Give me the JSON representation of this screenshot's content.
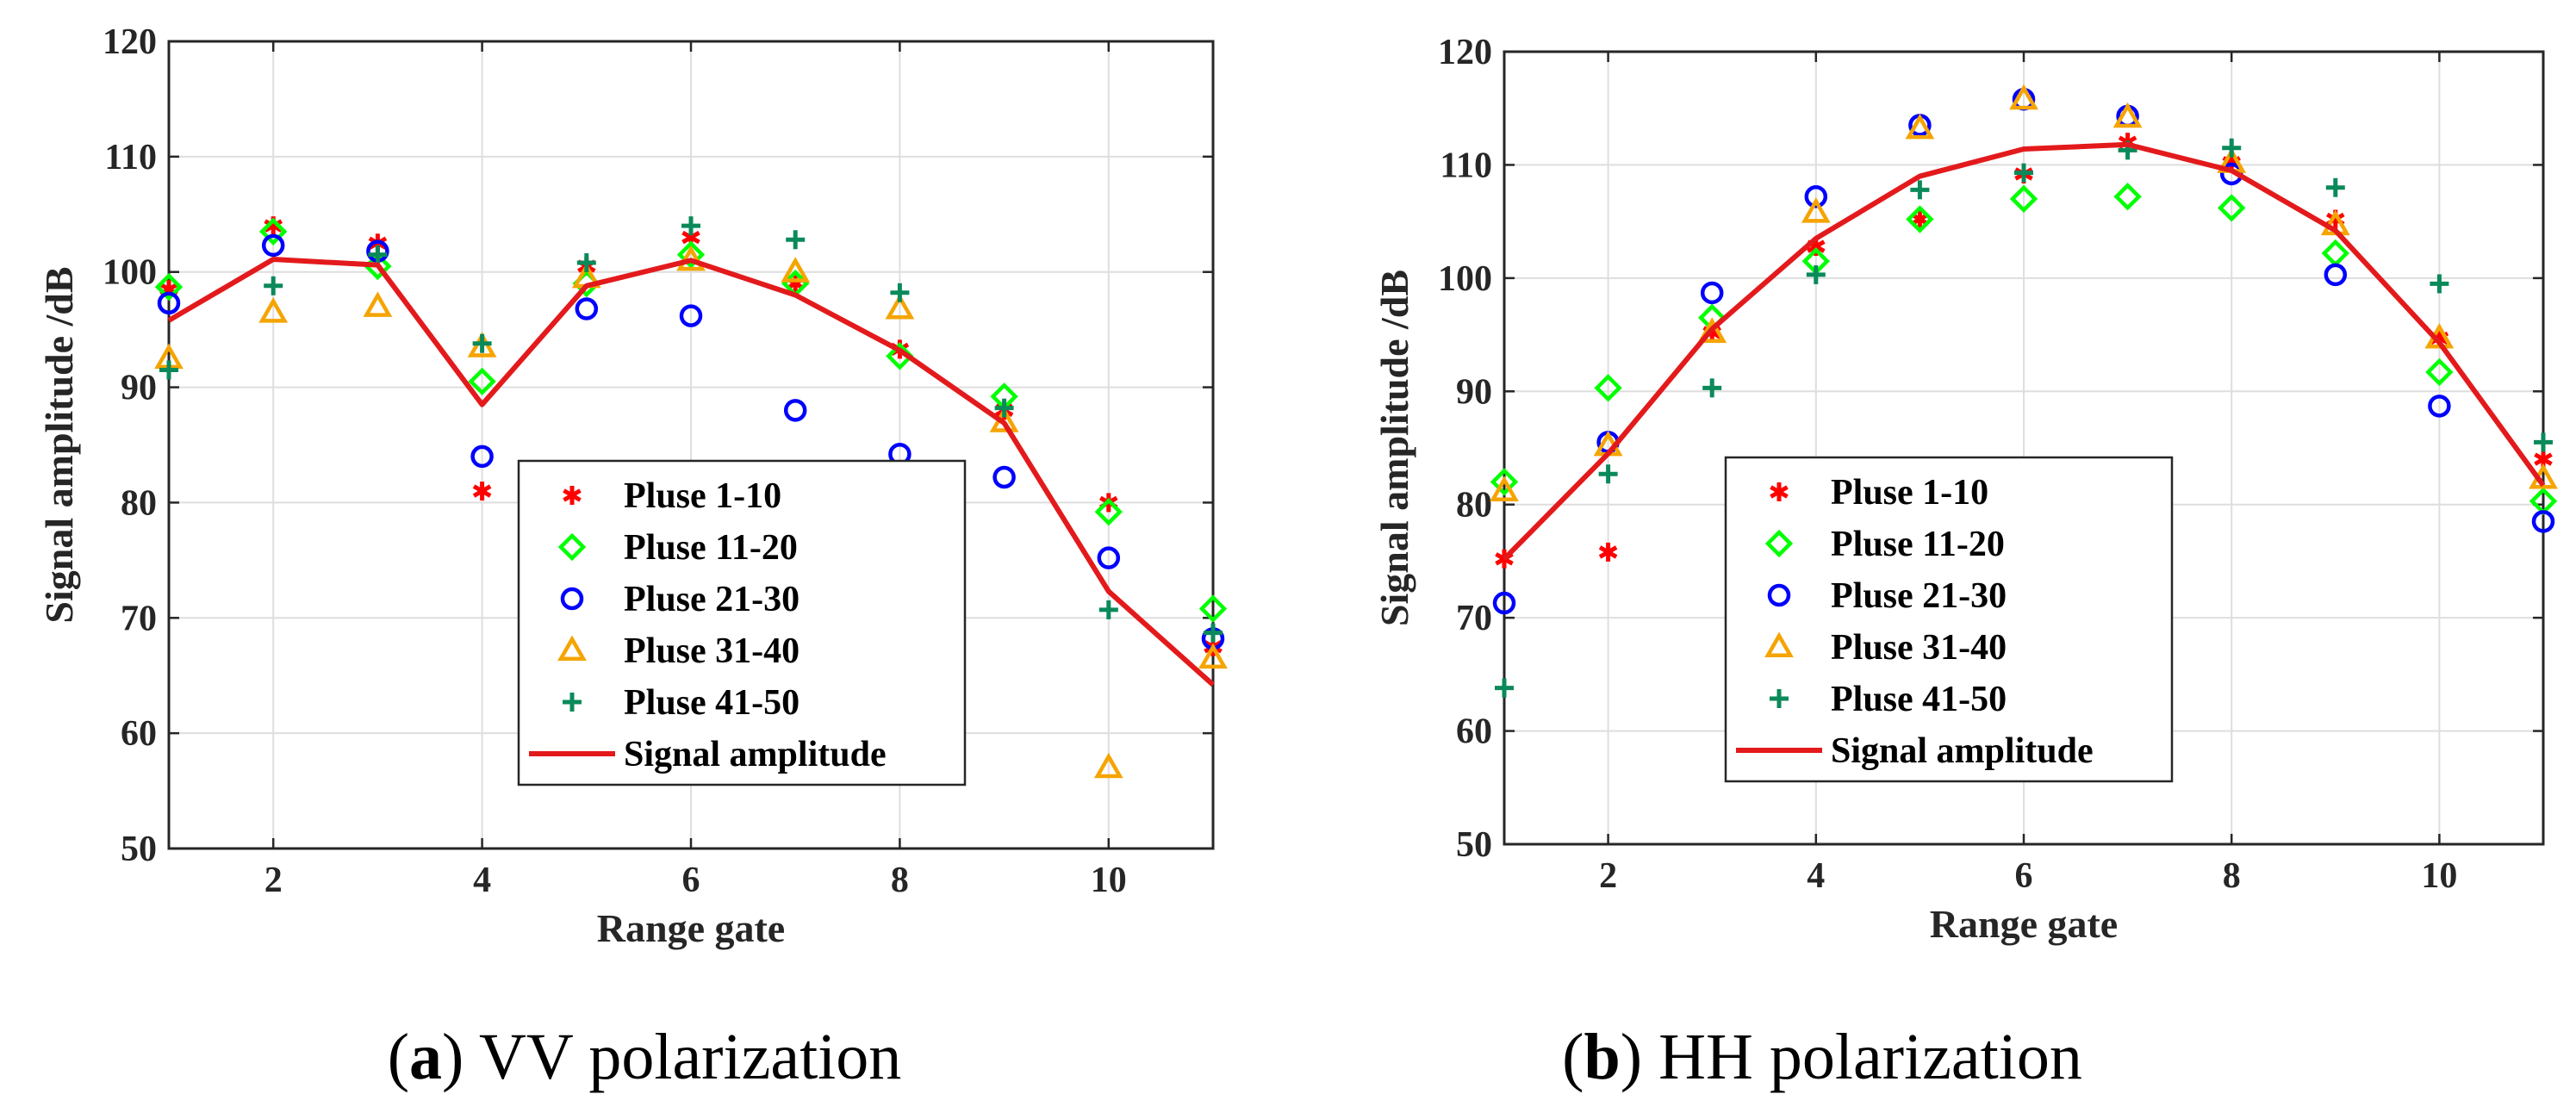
{
  "chart_data": [
    {
      "type": "scatter",
      "caption": {
        "letter": "a",
        "text": "VV polarization"
      },
      "xlabel": "Range gate",
      "ylabel": "Signal amplitude  /dB",
      "xlim": [
        1,
        11
      ],
      "ylim": [
        50,
        120
      ],
      "xticks": [
        2,
        4,
        6,
        8,
        10
      ],
      "yticks": [
        50,
        60,
        70,
        80,
        90,
        100,
        110,
        120
      ],
      "grid": true,
      "legend_position": "lower-right",
      "x": [
        1,
        2,
        3,
        4,
        5,
        6,
        7,
        8,
        9,
        10,
        11
      ],
      "series": [
        {
          "name": "Pluse 1-10",
          "marker": "asterisk",
          "color": "#ff0000",
          "values": [
            98.5,
            104,
            102.5,
            81,
            100.5,
            103,
            99,
            93.3,
            88,
            80,
            67.5
          ]
        },
        {
          "name": "Pluse 11-20",
          "marker": "diamond",
          "color": "#00ff00",
          "values": [
            98.7,
            103.5,
            100.5,
            90.5,
            99,
            101.5,
            99,
            92.7,
            89.2,
            79.2,
            70.8
          ]
        },
        {
          "name": "Pluse 21-30",
          "marker": "circle",
          "color": "#0000ff",
          "values": [
            97.3,
            102.3,
            101.8,
            84,
            96.8,
            96.2,
            88,
            84.2,
            82.2,
            75.2,
            68.2
          ]
        },
        {
          "name": "Pluse 31-40",
          "marker": "triangle",
          "color": "#f5a400",
          "values": [
            92.5,
            96.5,
            97,
            93.5,
            99.5,
            101,
            100,
            96.8,
            87,
            57,
            66.5
          ]
        },
        {
          "name": "Pluse 41-50",
          "marker": "plus",
          "color": "#0a8a5a",
          "values": [
            91.5,
            98.8,
            101.5,
            93.8,
            100.8,
            104,
            102.8,
            98.2,
            88.2,
            70.7,
            68.7
          ]
        },
        {
          "name": "Signal amplitude",
          "marker": "line",
          "color": "#e31a1c",
          "values": [
            95.8,
            101.1,
            100.6,
            88.5,
            98.8,
            101,
            98,
            93.2,
            86.9,
            72.3,
            64.2
          ]
        }
      ]
    },
    {
      "type": "scatter",
      "caption": {
        "letter": "b",
        "text": "HH polarization"
      },
      "xlabel": "Range gate",
      "ylabel": "Signal amplitude  /dB",
      "xlim": [
        1,
        11
      ],
      "ylim": [
        50,
        120
      ],
      "xticks": [
        2,
        4,
        6,
        8,
        10
      ],
      "yticks": [
        50,
        60,
        70,
        80,
        90,
        100,
        110,
        120
      ],
      "grid": true,
      "legend_position": "lower-left",
      "x": [
        1,
        2,
        3,
        4,
        5,
        6,
        7,
        8,
        9,
        10,
        11
      ],
      "series": [
        {
          "name": "Pluse 1-10",
          "marker": "asterisk",
          "color": "#ff0000",
          "values": [
            75.2,
            75.8,
            95.2,
            102.8,
            105.2,
            109.2,
            112,
            110.2,
            105.2,
            94.7,
            84
          ]
        },
        {
          "name": "Pluse 11-20",
          "marker": "diamond",
          "color": "#00ff00",
          "values": [
            82,
            90.3,
            96.5,
            101.5,
            105.2,
            107,
            107.2,
            106.2,
            102.2,
            91.7,
            80.3
          ]
        },
        {
          "name": "Pluse 21-30",
          "marker": "circle",
          "color": "#0000ff",
          "values": [
            71.3,
            85.5,
            98.7,
            107.2,
            113.5,
            115.8,
            114.3,
            109.2,
            100.3,
            88.7,
            78.5
          ]
        },
        {
          "name": "Pluse 31-40",
          "marker": "triangle",
          "color": "#f5a400",
          "values": [
            81.2,
            85.2,
            95.2,
            105.8,
            113.2,
            115.8,
            114.2,
            110.2,
            104.7,
            94.7,
            82.3
          ]
        },
        {
          "name": "Pluse 41-50",
          "marker": "plus",
          "color": "#0a8a5a",
          "values": [
            63.8,
            82.7,
            90.3,
            100.3,
            107.8,
            109.3,
            111.3,
            111.5,
            108,
            99.5,
            85.5
          ]
        },
        {
          "name": "Signal amplitude",
          "marker": "line",
          "color": "#e31a1c",
          "values": [
            75.2,
            84.5,
            95.5,
            103.5,
            109,
            111.4,
            111.8,
            109.5,
            104.2,
            94.3,
            81.7
          ]
        }
      ]
    }
  ]
}
